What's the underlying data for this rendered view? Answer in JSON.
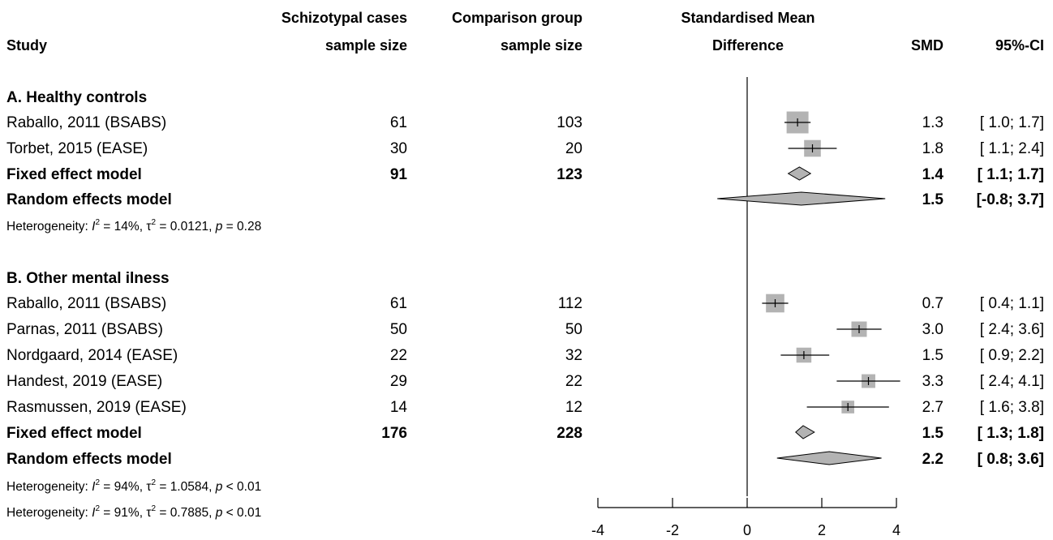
{
  "chart_data": {
    "type": "forest",
    "headers": {
      "study": "Study",
      "cases_line1": "Schizotypal cases",
      "cases_line2": "sample size",
      "comparison_line1": "Comparison group",
      "comparison_line2": "sample size",
      "effect_line1": "Standardised Mean",
      "effect_line2": "Difference",
      "smd": "SMD",
      "ci": "95%-CI"
    },
    "xlim": [
      -4,
      4
    ],
    "ticks": [
      "-4",
      "-2",
      "0",
      "2",
      "4"
    ],
    "reference_line": 0,
    "groups": [
      {
        "title": "A. Healthy controls",
        "studies": [
          {
            "name": "Raballo, 2011 (BSABS)",
            "cases": "61",
            "comparison": "103",
            "smd": 1.35,
            "lower": 1.0,
            "upper": 1.7,
            "weight": 0.72,
            "smd_text": "1.3",
            "ci_text": "[ 1.0; 1.7]"
          },
          {
            "name": "Torbet, 2015 (EASE)",
            "cases": "30",
            "comparison": "20",
            "smd": 1.75,
            "lower": 1.1,
            "upper": 2.4,
            "weight": 0.28,
            "smd_text": "1.8",
            "ci_text": "[ 1.1; 2.4]"
          }
        ],
        "fixed": {
          "label": "Fixed effect model",
          "cases": "91",
          "comparison": "123",
          "smd": 1.4,
          "lower": 1.1,
          "upper": 1.7,
          "smd_text": "1.4",
          "ci_text": "[ 1.1; 1.7]"
        },
        "random": {
          "label": "Random effects model",
          "smd": 1.45,
          "lower": -0.8,
          "upper": 3.7,
          "smd_text": "1.5",
          "ci_text": "[-0.8; 3.7]"
        },
        "heterogeneity": [
          {
            "prefix": "Heterogeneity: ",
            "I2": "14%",
            "tau2": "0.0121",
            "p_rel": "=",
            "p": "0.28"
          }
        ]
      },
      {
        "title": "B. Other mental ilness",
        "studies": [
          {
            "name": "Raballo, 2011 (BSABS)",
            "cases": "61",
            "comparison": "112",
            "smd": 0.75,
            "lower": 0.4,
            "upper": 1.1,
            "weight": 0.4,
            "smd_text": "0.7",
            "ci_text": "[ 0.4; 1.1]"
          },
          {
            "name": "Parnas, 2011 (BSABS)",
            "cases": "50",
            "comparison": "50",
            "smd": 3.0,
            "lower": 2.4,
            "upper": 3.6,
            "weight": 0.2,
            "smd_text": "3.0",
            "ci_text": "[ 2.4; 3.6]"
          },
          {
            "name": "Nordgaard, 2014 (EASE)",
            "cases": "22",
            "comparison": "32",
            "smd": 1.52,
            "lower": 0.9,
            "upper": 2.2,
            "weight": 0.18,
            "smd_text": "1.5",
            "ci_text": "[ 0.9; 2.2]"
          },
          {
            "name": "Handest, 2019 (EASE)",
            "cases": "29",
            "comparison": "22",
            "smd": 3.25,
            "lower": 2.4,
            "upper": 4.1,
            "weight": 0.12,
            "smd_text": "3.3",
            "ci_text": "[ 2.4; 4.1]"
          },
          {
            "name": "Rasmussen, 2019 (EASE)",
            "cases": "14",
            "comparison": "12",
            "smd": 2.7,
            "lower": 1.6,
            "upper": 3.8,
            "weight": 0.08,
            "smd_text": "2.7",
            "ci_text": "[ 1.6; 3.8]"
          }
        ],
        "fixed": {
          "label": "Fixed effect model",
          "cases": "176",
          "comparison": "228",
          "smd": 1.5,
          "lower": 1.3,
          "upper": 1.8,
          "smd_text": "1.5",
          "ci_text": "[ 1.3; 1.8]"
        },
        "random": {
          "label": "Random effects model",
          "smd": 2.2,
          "lower": 0.8,
          "upper": 3.6,
          "smd_text": "2.2",
          "ci_text": "[ 0.8; 3.6]"
        },
        "heterogeneity": [
          {
            "prefix": "Heterogeneity: ",
            "I2": "94%",
            "tau2": "1.0584",
            "p_rel": "<",
            "p": "0.01"
          },
          {
            "prefix": "Heterogeneity: ",
            "I2": "91%",
            "tau2": "0.7885",
            "p_rel": "<",
            "p": "0.01"
          }
        ]
      }
    ],
    "colors": {
      "box": "#b3b3b3",
      "diamond": "#b3b3b3",
      "line": "#000000"
    }
  }
}
